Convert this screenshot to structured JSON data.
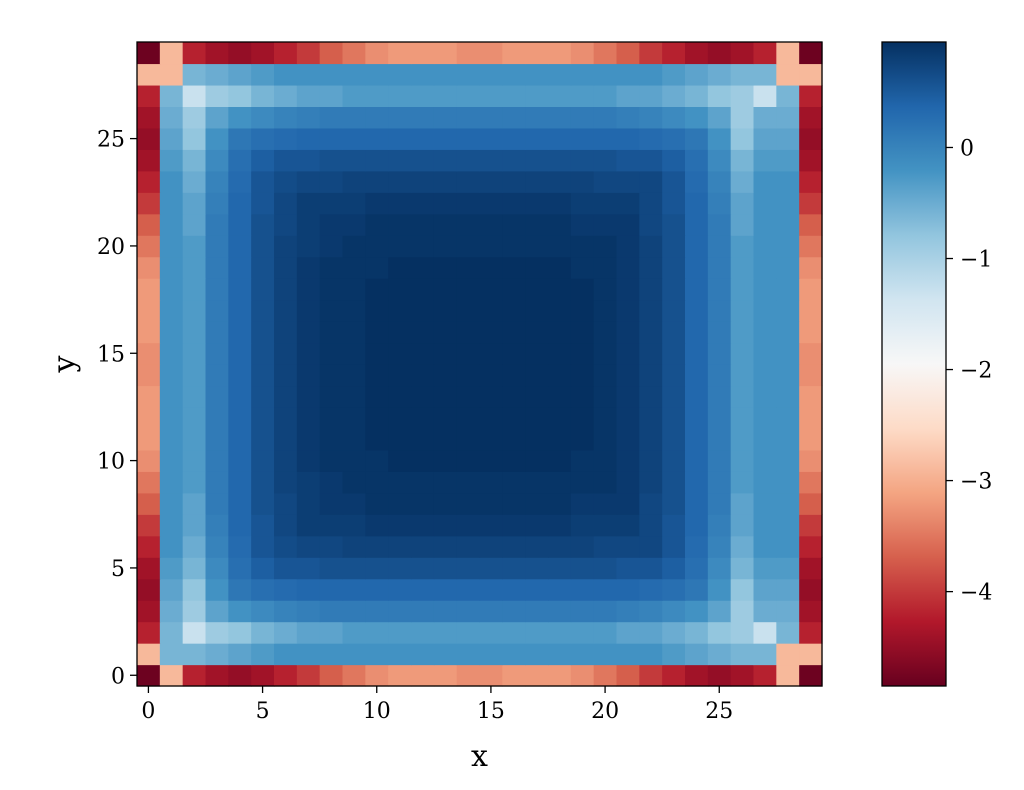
{
  "chart_data": {
    "type": "heatmap",
    "title": "",
    "xlabel": "x",
    "ylabel": "y",
    "grid_size": 30,
    "xlim": [
      -0.5,
      29.5
    ],
    "ylim": [
      -0.5,
      29.5
    ],
    "xticks": [
      0,
      5,
      10,
      15,
      20,
      25
    ],
    "yticks": [
      0,
      5,
      10,
      15,
      20,
      25
    ],
    "colormap": "RdBu",
    "colormap_stops": [
      "#67001f",
      "#b2182b",
      "#d6604d",
      "#f4a582",
      "#fddbc7",
      "#f7f7f7",
      "#d1e5f0",
      "#92c5de",
      "#4393c3",
      "#2166ac",
      "#053061"
    ],
    "vmin": -4.85,
    "vmax": 0.95,
    "colorbar_ticks": [
      0,
      -1,
      -2,
      -3,
      -4
    ],
    "colorbar_tick_labels": [
      "0",
      "−1",
      "−2",
      "−3",
      "−4"
    ],
    "values": [
      [
        -4.8,
        -2.9,
        -4.2,
        -4.4,
        -4.5,
        -4.4,
        -4.2,
        -4.0,
        -3.7,
        -3.5,
        -3.3,
        -3.2,
        -3.2,
        -3.2,
        -3.3,
        -3.3,
        -3.2,
        -3.2,
        -3.2,
        -3.3,
        -3.5,
        -3.7,
        -4.0,
        -4.2,
        -4.4,
        -4.5,
        -4.4,
        -4.2,
        -2.9,
        -4.8
      ],
      [
        -2.9,
        -0.6,
        -0.6,
        -0.5,
        -0.4,
        -0.3,
        -0.2,
        -0.2,
        -0.2,
        -0.2,
        -0.2,
        -0.2,
        -0.2,
        -0.2,
        -0.2,
        -0.2,
        -0.2,
        -0.2,
        -0.2,
        -0.2,
        -0.2,
        -0.2,
        -0.2,
        -0.3,
        -0.4,
        -0.5,
        -0.6,
        -0.6,
        -2.9,
        -2.9
      ],
      [
        -4.2,
        -0.6,
        -1.3,
        -0.9,
        -0.8,
        -0.6,
        -0.5,
        -0.4,
        -0.4,
        -0.3,
        -0.3,
        -0.3,
        -0.3,
        -0.3,
        -0.3,
        -0.3,
        -0.3,
        -0.3,
        -0.3,
        -0.3,
        -0.3,
        -0.4,
        -0.4,
        -0.5,
        -0.6,
        -0.8,
        -0.9,
        -1.3,
        -0.6,
        -4.2
      ],
      [
        -4.4,
        -0.5,
        -0.9,
        -0.4,
        -0.2,
        -0.1,
        0.0,
        0.05,
        0.1,
        0.1,
        0.1,
        0.1,
        0.1,
        0.1,
        0.1,
        0.1,
        0.1,
        0.1,
        0.1,
        0.1,
        0.1,
        0.05,
        0.0,
        -0.1,
        -0.2,
        -0.4,
        -0.9,
        -0.5,
        -0.5,
        -4.4
      ],
      [
        -4.5,
        -0.4,
        -0.8,
        -0.2,
        0.15,
        0.25,
        0.3,
        0.35,
        0.35,
        0.35,
        0.35,
        0.35,
        0.35,
        0.35,
        0.35,
        0.35,
        0.35,
        0.35,
        0.35,
        0.35,
        0.35,
        0.35,
        0.3,
        0.25,
        0.15,
        -0.2,
        -0.8,
        -0.4,
        -0.4,
        -4.5
      ],
      [
        -4.4,
        -0.3,
        -0.6,
        -0.1,
        0.25,
        0.45,
        0.55,
        0.55,
        0.6,
        0.6,
        0.6,
        0.6,
        0.6,
        0.6,
        0.6,
        0.6,
        0.6,
        0.6,
        0.6,
        0.6,
        0.6,
        0.55,
        0.55,
        0.45,
        0.25,
        -0.1,
        -0.6,
        -0.3,
        -0.3,
        -4.4
      ],
      [
        -4.2,
        -0.2,
        -0.5,
        0.0,
        0.3,
        0.55,
        0.65,
        0.7,
        0.7,
        0.75,
        0.75,
        0.75,
        0.75,
        0.75,
        0.75,
        0.75,
        0.75,
        0.75,
        0.75,
        0.75,
        0.7,
        0.7,
        0.7,
        0.55,
        0.3,
        0.0,
        -0.5,
        -0.2,
        -0.2,
        -4.2
      ],
      [
        -4.0,
        -0.2,
        -0.4,
        0.05,
        0.35,
        0.55,
        0.7,
        0.8,
        0.8,
        0.8,
        0.85,
        0.85,
        0.85,
        0.85,
        0.85,
        0.85,
        0.85,
        0.85,
        0.85,
        0.8,
        0.8,
        0.8,
        0.7,
        0.55,
        0.35,
        0.05,
        -0.4,
        -0.2,
        -0.2,
        -4.0
      ],
      [
        -3.7,
        -0.2,
        -0.4,
        0.1,
        0.35,
        0.6,
        0.7,
        0.8,
        0.85,
        0.85,
        0.9,
        0.9,
        0.9,
        0.9,
        0.9,
        0.9,
        0.9,
        0.9,
        0.9,
        0.85,
        0.85,
        0.85,
        0.7,
        0.6,
        0.35,
        0.1,
        -0.4,
        -0.2,
        -0.2,
        -3.7
      ],
      [
        -3.5,
        -0.2,
        -0.3,
        0.1,
        0.35,
        0.6,
        0.75,
        0.8,
        0.85,
        0.9,
        0.9,
        0.9,
        0.9,
        0.9,
        0.9,
        0.9,
        0.9,
        0.9,
        0.9,
        0.9,
        0.9,
        0.85,
        0.75,
        0.6,
        0.35,
        0.1,
        -0.3,
        -0.2,
        -0.2,
        -3.5
      ],
      [
        -3.3,
        -0.2,
        -0.3,
        0.1,
        0.35,
        0.6,
        0.75,
        0.85,
        0.9,
        0.9,
        0.9,
        0.95,
        0.95,
        0.95,
        0.95,
        0.95,
        0.95,
        0.95,
        0.95,
        0.9,
        0.9,
        0.85,
        0.75,
        0.6,
        0.35,
        0.1,
        -0.3,
        -0.2,
        -0.2,
        -3.3
      ],
      [
        -3.2,
        -0.2,
        -0.3,
        0.1,
        0.35,
        0.6,
        0.75,
        0.85,
        0.9,
        0.9,
        0.95,
        0.95,
        0.95,
        0.95,
        0.95,
        0.95,
        0.95,
        0.95,
        0.95,
        0.95,
        0.9,
        0.85,
        0.75,
        0.6,
        0.35,
        0.1,
        -0.3,
        -0.2,
        -0.2,
        -3.2
      ],
      [
        -3.2,
        -0.2,
        -0.3,
        0.1,
        0.35,
        0.6,
        0.75,
        0.85,
        0.9,
        0.9,
        0.95,
        0.95,
        0.95,
        0.95,
        0.95,
        0.95,
        0.95,
        0.95,
        0.95,
        0.95,
        0.9,
        0.85,
        0.75,
        0.6,
        0.35,
        0.1,
        -0.3,
        -0.2,
        -0.2,
        -3.2
      ],
      [
        -3.2,
        -0.2,
        -0.3,
        0.1,
        0.35,
        0.6,
        0.75,
        0.85,
        0.9,
        0.9,
        0.95,
        0.95,
        0.95,
        0.95,
        0.95,
        0.95,
        0.95,
        0.95,
        0.95,
        0.95,
        0.9,
        0.85,
        0.75,
        0.6,
        0.35,
        0.1,
        -0.3,
        -0.2,
        -0.2,
        -3.2
      ],
      [
        -3.3,
        -0.2,
        -0.3,
        0.1,
        0.35,
        0.6,
        0.75,
        0.85,
        0.9,
        0.9,
        0.95,
        0.95,
        0.95,
        0.95,
        0.95,
        0.95,
        0.95,
        0.95,
        0.95,
        0.95,
        0.9,
        0.85,
        0.75,
        0.6,
        0.35,
        0.1,
        -0.3,
        -0.2,
        -0.2,
        -3.3
      ],
      [
        -3.3,
        -0.2,
        -0.3,
        0.1,
        0.35,
        0.6,
        0.75,
        0.85,
        0.9,
        0.9,
        0.95,
        0.95,
        0.95,
        0.95,
        0.95,
        0.95,
        0.95,
        0.95,
        0.95,
        0.95,
        0.9,
        0.85,
        0.75,
        0.6,
        0.35,
        0.1,
        -0.3,
        -0.2,
        -0.2,
        -3.3
      ],
      [
        -3.2,
        -0.2,
        -0.3,
        0.1,
        0.35,
        0.6,
        0.75,
        0.85,
        0.9,
        0.9,
        0.95,
        0.95,
        0.95,
        0.95,
        0.95,
        0.95,
        0.95,
        0.95,
        0.95,
        0.95,
        0.9,
        0.85,
        0.75,
        0.6,
        0.35,
        0.1,
        -0.3,
        -0.2,
        -0.2,
        -3.2
      ],
      [
        -3.2,
        -0.2,
        -0.3,
        0.1,
        0.35,
        0.6,
        0.75,
        0.85,
        0.9,
        0.9,
        0.95,
        0.95,
        0.95,
        0.95,
        0.95,
        0.95,
        0.95,
        0.95,
        0.95,
        0.95,
        0.9,
        0.85,
        0.75,
        0.6,
        0.35,
        0.1,
        -0.3,
        -0.2,
        -0.2,
        -3.2
      ],
      [
        -3.2,
        -0.2,
        -0.3,
        0.1,
        0.35,
        0.6,
        0.75,
        0.85,
        0.9,
        0.9,
        0.95,
        0.95,
        0.95,
        0.95,
        0.95,
        0.95,
        0.95,
        0.95,
        0.95,
        0.95,
        0.9,
        0.85,
        0.75,
        0.6,
        0.35,
        0.1,
        -0.3,
        -0.2,
        -0.2,
        -3.2
      ],
      [
        -3.3,
        -0.2,
        -0.3,
        0.1,
        0.35,
        0.6,
        0.75,
        0.85,
        0.9,
        0.9,
        0.9,
        0.95,
        0.95,
        0.95,
        0.95,
        0.95,
        0.95,
        0.95,
        0.95,
        0.9,
        0.9,
        0.85,
        0.75,
        0.6,
        0.35,
        0.1,
        -0.3,
        -0.2,
        -0.2,
        -3.3
      ],
      [
        -3.5,
        -0.2,
        -0.3,
        0.1,
        0.35,
        0.6,
        0.75,
        0.8,
        0.85,
        0.9,
        0.9,
        0.9,
        0.9,
        0.9,
        0.9,
        0.9,
        0.9,
        0.9,
        0.9,
        0.9,
        0.9,
        0.85,
        0.75,
        0.6,
        0.35,
        0.1,
        -0.3,
        -0.2,
        -0.2,
        -3.5
      ],
      [
        -3.7,
        -0.2,
        -0.4,
        0.1,
        0.35,
        0.6,
        0.7,
        0.8,
        0.85,
        0.85,
        0.9,
        0.9,
        0.9,
        0.9,
        0.9,
        0.9,
        0.9,
        0.9,
        0.9,
        0.85,
        0.85,
        0.85,
        0.7,
        0.6,
        0.35,
        0.1,
        -0.4,
        -0.2,
        -0.2,
        -3.7
      ],
      [
        -4.0,
        -0.2,
        -0.4,
        0.05,
        0.35,
        0.55,
        0.7,
        0.8,
        0.8,
        0.8,
        0.85,
        0.85,
        0.85,
        0.85,
        0.85,
        0.85,
        0.85,
        0.85,
        0.85,
        0.8,
        0.8,
        0.8,
        0.7,
        0.55,
        0.35,
        0.05,
        -0.4,
        -0.2,
        -0.2,
        -4.0
      ],
      [
        -4.2,
        -0.2,
        -0.5,
        0.0,
        0.3,
        0.55,
        0.65,
        0.7,
        0.7,
        0.75,
        0.75,
        0.75,
        0.75,
        0.75,
        0.75,
        0.75,
        0.75,
        0.75,
        0.75,
        0.75,
        0.7,
        0.7,
        0.7,
        0.55,
        0.3,
        0.0,
        -0.5,
        -0.2,
        -0.2,
        -4.2
      ],
      [
        -4.4,
        -0.3,
        -0.6,
        -0.1,
        0.25,
        0.45,
        0.55,
        0.55,
        0.6,
        0.6,
        0.6,
        0.6,
        0.6,
        0.6,
        0.6,
        0.6,
        0.6,
        0.6,
        0.6,
        0.6,
        0.6,
        0.55,
        0.55,
        0.45,
        0.25,
        -0.1,
        -0.6,
        -0.3,
        -0.3,
        -4.4
      ],
      [
        -4.5,
        -0.4,
        -0.8,
        -0.2,
        0.15,
        0.25,
        0.3,
        0.35,
        0.35,
        0.35,
        0.35,
        0.35,
        0.35,
        0.35,
        0.35,
        0.35,
        0.35,
        0.35,
        0.35,
        0.35,
        0.35,
        0.35,
        0.3,
        0.25,
        0.15,
        -0.2,
        -0.8,
        -0.4,
        -0.4,
        -4.5
      ],
      [
        -4.4,
        -0.5,
        -0.9,
        -0.4,
        -0.2,
        -0.1,
        0.0,
        0.05,
        0.1,
        0.1,
        0.1,
        0.1,
        0.1,
        0.1,
        0.1,
        0.1,
        0.1,
        0.1,
        0.1,
        0.1,
        0.1,
        0.05,
        0.0,
        -0.1,
        -0.2,
        -0.4,
        -0.9,
        -0.5,
        -0.5,
        -4.4
      ],
      [
        -4.2,
        -0.6,
        -1.3,
        -0.9,
        -0.8,
        -0.6,
        -0.5,
        -0.4,
        -0.4,
        -0.3,
        -0.3,
        -0.3,
        -0.3,
        -0.3,
        -0.3,
        -0.3,
        -0.3,
        -0.3,
        -0.3,
        -0.3,
        -0.3,
        -0.4,
        -0.4,
        -0.5,
        -0.6,
        -0.8,
        -0.9,
        -1.3,
        -0.6,
        -4.2
      ],
      [
        -2.9,
        -2.9,
        -0.6,
        -0.5,
        -0.4,
        -0.3,
        -0.2,
        -0.2,
        -0.2,
        -0.2,
        -0.2,
        -0.2,
        -0.2,
        -0.2,
        -0.2,
        -0.2,
        -0.2,
        -0.2,
        -0.2,
        -0.2,
        -0.2,
        -0.2,
        -0.2,
        -0.3,
        -0.4,
        -0.5,
        -0.6,
        -0.6,
        -2.9,
        -2.9
      ],
      [
        -4.8,
        -2.9,
        -4.2,
        -4.4,
        -4.5,
        -4.4,
        -4.2,
        -4.0,
        -3.7,
        -3.5,
        -3.3,
        -3.2,
        -3.2,
        -3.2,
        -3.3,
        -3.3,
        -3.2,
        -3.2,
        -3.2,
        -3.3,
        -3.5,
        -3.7,
        -4.0,
        -4.2,
        -4.4,
        -4.5,
        -4.4,
        -4.2,
        -2.9,
        -4.8
      ]
    ]
  }
}
